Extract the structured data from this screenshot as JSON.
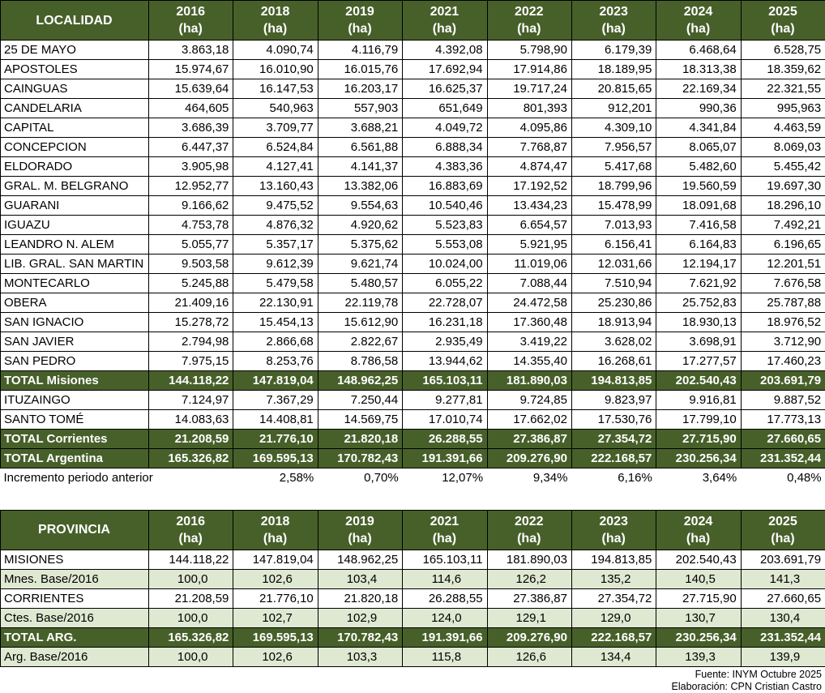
{
  "colors": {
    "header_green": "#47602a",
    "light_green": "#dfe9d2",
    "border": "#000000",
    "total_text": "#ffffff"
  },
  "table1": {
    "header": {
      "label_col": "LOCALIDAD",
      "unit": "(ha)",
      "years": [
        "2016",
        "2018",
        "2019",
        "2021",
        "2022",
        "2023",
        "2024",
        "2025"
      ]
    },
    "rows": [
      {
        "label": "25 DE MAYO",
        "type": "data",
        "values": [
          "3.863,18",
          "4.090,74",
          "4.116,79",
          "4.392,08",
          "5.798,90",
          "6.179,39",
          "6.468,64",
          "6.528,75"
        ]
      },
      {
        "label": "APOSTOLES",
        "type": "data",
        "values": [
          "15.974,67",
          "16.010,90",
          "16.015,76",
          "17.692,94",
          "17.914,86",
          "18.189,95",
          "18.313,38",
          "18.359,62"
        ]
      },
      {
        "label": "CAINGUAS",
        "type": "data",
        "values": [
          "15.639,64",
          "16.147,53",
          "16.203,17",
          "16.625,37",
          "19.717,24",
          "20.815,65",
          "22.169,34",
          "22.321,55"
        ]
      },
      {
        "label": "CANDELARIA",
        "type": "data",
        "values": [
          "464,605",
          "540,963",
          "557,903",
          "651,649",
          "801,393",
          "912,201",
          "990,36",
          "995,963"
        ]
      },
      {
        "label": "CAPITAL",
        "type": "data",
        "values": [
          "3.686,39",
          "3.709,77",
          "3.688,21",
          "4.049,72",
          "4.095,86",
          "4.309,10",
          "4.341,84",
          "4.463,59"
        ]
      },
      {
        "label": "CONCEPCION",
        "type": "data",
        "values": [
          "6.447,37",
          "6.524,84",
          "6.561,88",
          "6.888,34",
          "7.768,87",
          "7.956,57",
          "8.065,07",
          "8.069,03"
        ]
      },
      {
        "label": "ELDORADO",
        "type": "data",
        "values": [
          "3.905,98",
          "4.127,41",
          "4.141,37",
          "4.383,36",
          "4.874,47",
          "5.417,68",
          "5.482,60",
          "5.455,42"
        ]
      },
      {
        "label": "GRAL. M. BELGRANO",
        "type": "data",
        "values": [
          "12.952,77",
          "13.160,43",
          "13.382,06",
          "16.883,69",
          "17.192,52",
          "18.799,96",
          "19.560,59",
          "19.697,30"
        ]
      },
      {
        "label": "GUARANI",
        "type": "data",
        "values": [
          "9.166,62",
          "9.475,52",
          "9.554,63",
          "10.540,46",
          "13.434,23",
          "15.478,99",
          "18.091,68",
          "18.296,10"
        ]
      },
      {
        "label": "IGUAZU",
        "type": "data",
        "values": [
          "4.753,78",
          "4.876,32",
          "4.920,62",
          "5.523,83",
          "6.654,57",
          "7.013,93",
          "7.416,58",
          "7.492,21"
        ]
      },
      {
        "label": "LEANDRO N. ALEM",
        "type": "data",
        "values": [
          "5.055,77",
          "5.357,17",
          "5.375,62",
          "5.553,08",
          "5.921,95",
          "6.156,41",
          "6.164,83",
          "6.196,65"
        ]
      },
      {
        "label": "LIB. GRAL. SAN MARTIN",
        "type": "data",
        "values": [
          "9.503,58",
          "9.612,39",
          "9.621,74",
          "10.024,00",
          "11.019,06",
          "12.031,66",
          "12.194,17",
          "12.201,51"
        ]
      },
      {
        "label": "MONTECARLO",
        "type": "data",
        "values": [
          "5.245,88",
          "5.479,58",
          "5.480,57",
          "6.055,22",
          "7.088,44",
          "7.510,94",
          "7.621,92",
          "7.676,58"
        ]
      },
      {
        "label": "OBERA",
        "type": "data",
        "values": [
          "21.409,16",
          "22.130,91",
          "22.119,78",
          "22.728,07",
          "24.472,58",
          "25.230,86",
          "25.752,83",
          "25.787,88"
        ]
      },
      {
        "label": "SAN IGNACIO",
        "type": "data",
        "values": [
          "15.278,72",
          "15.454,13",
          "15.612,90",
          "16.231,18",
          "17.360,48",
          "18.913,94",
          "18.930,13",
          "18.976,52"
        ]
      },
      {
        "label": "SAN JAVIER",
        "type": "data",
        "values": [
          "2.794,98",
          "2.866,68",
          "2.822,67",
          "2.935,49",
          "3.419,22",
          "3.628,02",
          "3.698,91",
          "3.712,90"
        ]
      },
      {
        "label": "SAN PEDRO",
        "type": "data",
        "values": [
          "7.975,15",
          "8.253,76",
          "8.786,58",
          "13.944,62",
          "14.355,40",
          "16.268,61",
          "17.277,57",
          "17.460,23"
        ]
      },
      {
        "label": "TOTAL Misiones",
        "type": "total",
        "values": [
          "144.118,22",
          "147.819,04",
          "148.962,25",
          "165.103,11",
          "181.890,03",
          "194.813,85",
          "202.540,43",
          "203.691,79"
        ]
      },
      {
        "label": "ITUZAINGO",
        "type": "data",
        "values": [
          "7.124,97",
          "7.367,29",
          "7.250,44",
          "9.277,81",
          "9.724,85",
          "9.823,97",
          "9.916,81",
          "9.887,52"
        ]
      },
      {
        "label": "SANTO TOMÉ",
        "type": "data",
        "values": [
          "14.083,63",
          "14.408,81",
          "14.569,75",
          "17.010,74",
          "17.662,02",
          "17.530,76",
          "17.799,10",
          "17.773,13"
        ]
      },
      {
        "label": "TOTAL Corrientes",
        "type": "total",
        "values": [
          "21.208,59",
          "21.776,10",
          "21.820,18",
          "26.288,55",
          "27.386,87",
          "27.354,72",
          "27.715,90",
          "27.660,65"
        ]
      },
      {
        "label": "TOTAL Argentina",
        "type": "total",
        "values": [
          "165.326,82",
          "169.595,13",
          "170.782,43",
          "191.391,66",
          "209.276,90",
          "222.168,57",
          "230.256,34",
          "231.352,44"
        ]
      },
      {
        "label": "Incremento periodo anterior",
        "type": "increment",
        "values": [
          "",
          "2,58%",
          "0,70%",
          "12,07%",
          "9,34%",
          "6,16%",
          "3,64%",
          "0,48%"
        ]
      }
    ]
  },
  "table2": {
    "header": {
      "label_col": "PROVINCIA",
      "unit": "(ha)",
      "years": [
        "2016",
        "2018",
        "2019",
        "2021",
        "2022",
        "2023",
        "2024",
        "2025"
      ]
    },
    "rows": [
      {
        "label": "MISIONES",
        "type": "data",
        "values": [
          "144.118,22",
          "147.819,04",
          "148.962,25",
          "165.103,11",
          "181.890,03",
          "194.813,85",
          "202.540,43",
          "203.691,79"
        ]
      },
      {
        "label": "Mnes. Base/2016",
        "type": "base",
        "values": [
          "100,0",
          "102,6",
          "103,4",
          "114,6",
          "126,2",
          "135,2",
          "140,5",
          "141,3"
        ]
      },
      {
        "label": "CORRIENTES",
        "type": "data",
        "values": [
          "21.208,59",
          "21.776,10",
          "21.820,18",
          "26.288,55",
          "27.386,87",
          "27.354,72",
          "27.715,90",
          "27.660,65"
        ]
      },
      {
        "label": "Ctes. Base/2016",
        "type": "base",
        "values": [
          "100,0",
          "102,7",
          "102,9",
          "124,0",
          "129,1",
          "129,0",
          "130,7",
          "130,4"
        ]
      },
      {
        "label": "TOTAL ARG.",
        "type": "total",
        "values": [
          "165.326,82",
          "169.595,13",
          "170.782,43",
          "191.391,66",
          "209.276,90",
          "222.168,57",
          "230.256,34",
          "231.352,44"
        ]
      },
      {
        "label": "Arg. Base/2016",
        "type": "base",
        "values": [
          "100,0",
          "102,6",
          "103,3",
          "115,8",
          "126,6",
          "134,4",
          "139,3",
          "139,9"
        ]
      }
    ]
  },
  "footer": {
    "source": "Fuente: INYM Octubre 2025",
    "elaboration": "Elaboración: CPN Cristian Castro"
  }
}
